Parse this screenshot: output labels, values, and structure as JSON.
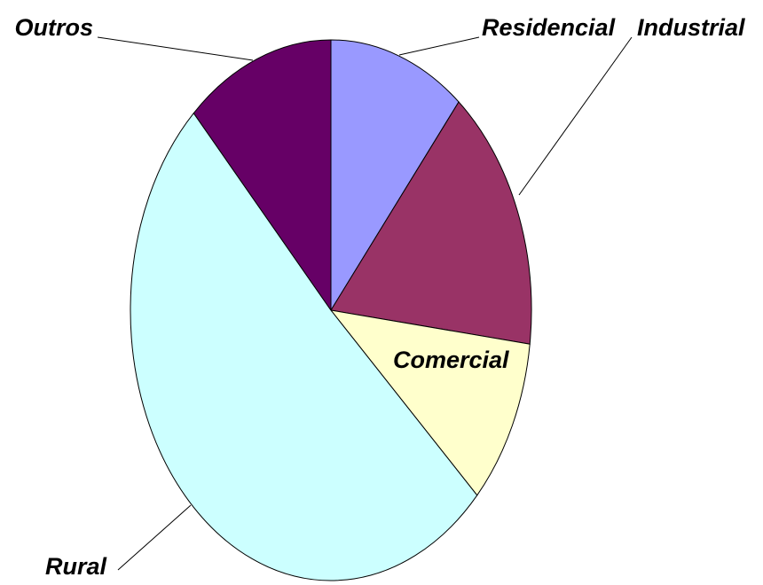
{
  "chart_data": {
    "type": "pie",
    "categories": [
      "Residencial",
      "Industrial",
      "Comercial",
      "Rural",
      "Outros"
    ],
    "values": [
      11,
      16,
      10,
      51,
      12
    ],
    "colors": [
      "#9999ff",
      "#993366",
      "#ffffcc",
      "#ccffff",
      "#660066"
    ]
  }
}
